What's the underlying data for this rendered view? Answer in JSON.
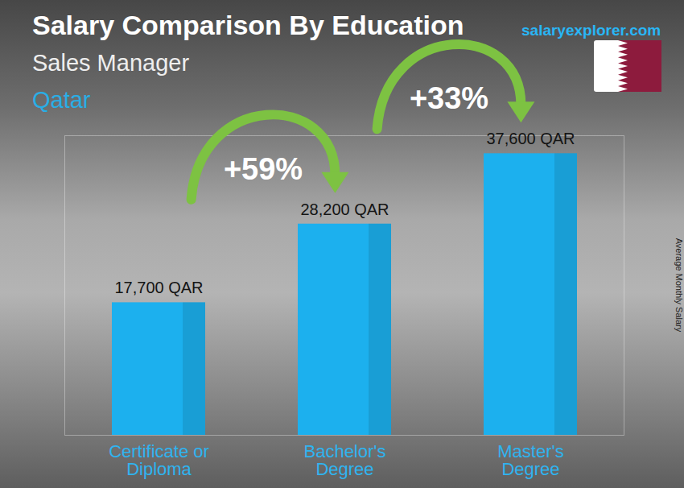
{
  "chart_data": {
    "type": "bar",
    "title": "Salary Comparison By Education",
    "subtitle": "Sales Manager",
    "location": "Qatar",
    "source": "salaryexplorer.com",
    "y_label": "Average Monthly Salary",
    "categories": [
      "Certificate or Diploma",
      "Bachelor's Degree",
      "Master's Degree"
    ],
    "values": [
      17700,
      28200,
      37600
    ],
    "value_labels": [
      "17,700 QAR",
      "28,200 QAR",
      "37,600 QAR"
    ],
    "color": "#1cb0ee",
    "ylim": [
      0,
      40000
    ],
    "yticks": [],
    "tick_labels": "x",
    "data_labels": true,
    "annotations": [
      {
        "text": "+59%",
        "from": "Certificate or Diploma",
        "to": "Bachelor's Degree"
      },
      {
        "text": "+33%",
        "from": "Bachelor's Degree",
        "to": "Master's Degree"
      }
    ]
  }
}
